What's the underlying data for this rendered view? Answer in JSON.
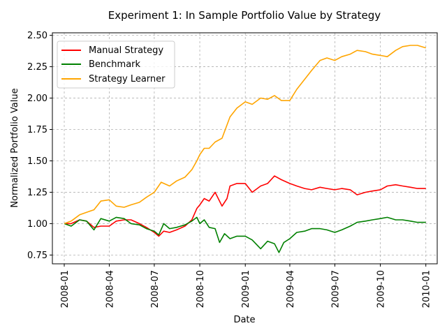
{
  "chart_data": {
    "type": "line",
    "title": "Experiment 1: In Sample Portfolio Value by Strategy",
    "xlabel": "Date",
    "ylabel": "Normalized Portfolio Value",
    "xlim": [
      "2007-12-08",
      "2010-01-24"
    ],
    "ylim": [
      0.68,
      2.52
    ],
    "grid": true,
    "legend_position": "top-left",
    "x_ticks": [
      "2008-01-01",
      "2008-04-01",
      "2008-07-01",
      "2008-10-01",
      "2009-01-01",
      "2009-04-01",
      "2009-07-01",
      "2009-10-01",
      "2010-01-01"
    ],
    "x_tick_labels": [
      "2008-01",
      "2008-04",
      "2008-07",
      "2008-10",
      "2009-01",
      "2009-04",
      "2009-07",
      "2009-10",
      "2010-01"
    ],
    "y_ticks": [
      0.75,
      1.0,
      1.25,
      1.5,
      1.75,
      2.0,
      2.25,
      2.5
    ],
    "y_tick_labels": [
      "0.75",
      "1.00",
      "1.25",
      "1.50",
      "1.75",
      "2.00",
      "2.25",
      "2.50"
    ],
    "series": [
      {
        "name": "Manual Strategy",
        "color": "#ff0000",
        "x": [
          "2008-01-01",
          "2008-01-15",
          "2008-02-01",
          "2008-02-15",
          "2008-03-01",
          "2008-03-15",
          "2008-04-01",
          "2008-04-15",
          "2008-05-01",
          "2008-05-15",
          "2008-06-01",
          "2008-06-15",
          "2008-07-01",
          "2008-07-10",
          "2008-07-20",
          "2008-08-01",
          "2008-08-15",
          "2008-09-01",
          "2008-09-15",
          "2008-09-25",
          "2008-10-01",
          "2008-10-10",
          "2008-10-20",
          "2008-11-01",
          "2008-11-15",
          "2008-11-25",
          "2008-12-01",
          "2008-12-15",
          "2009-01-01",
          "2009-01-15",
          "2009-02-01",
          "2009-02-15",
          "2009-03-01",
          "2009-03-15",
          "2009-04-01",
          "2009-04-15",
          "2009-05-01",
          "2009-05-15",
          "2009-06-01",
          "2009-06-15",
          "2009-07-01",
          "2009-07-15",
          "2009-08-01",
          "2009-08-15",
          "2009-09-01",
          "2009-09-15",
          "2009-10-01",
          "2009-10-15",
          "2009-11-01",
          "2009-11-15",
          "2009-12-01",
          "2009-12-15",
          "2010-01-01"
        ],
        "y": [
          1.0,
          1.0,
          1.03,
          1.02,
          0.97,
          0.98,
          0.98,
          1.02,
          1.03,
          1.03,
          1.0,
          0.97,
          0.93,
          0.9,
          0.94,
          0.93,
          0.95,
          0.98,
          1.03,
          1.12,
          1.15,
          1.2,
          1.18,
          1.25,
          1.14,
          1.2,
          1.3,
          1.32,
          1.32,
          1.25,
          1.3,
          1.32,
          1.38,
          1.35,
          1.32,
          1.3,
          1.28,
          1.27,
          1.29,
          1.28,
          1.27,
          1.28,
          1.27,
          1.23,
          1.25,
          1.26,
          1.27,
          1.3,
          1.31,
          1.3,
          1.29,
          1.28,
          1.28
        ]
      },
      {
        "name": "Benchmark",
        "color": "#008000",
        "x": [
          "2008-01-01",
          "2008-01-15",
          "2008-02-01",
          "2008-02-15",
          "2008-03-01",
          "2008-03-15",
          "2008-04-01",
          "2008-04-15",
          "2008-05-01",
          "2008-05-15",
          "2008-06-01",
          "2008-06-15",
          "2008-07-01",
          "2008-07-10",
          "2008-07-20",
          "2008-08-01",
          "2008-08-15",
          "2008-09-01",
          "2008-09-15",
          "2008-09-25",
          "2008-10-01",
          "2008-10-10",
          "2008-10-20",
          "2008-11-01",
          "2008-11-10",
          "2008-11-20",
          "2008-12-01",
          "2008-12-15",
          "2009-01-01",
          "2009-01-15",
          "2009-02-01",
          "2009-02-15",
          "2009-03-01",
          "2009-03-10",
          "2009-03-20",
          "2009-04-01",
          "2009-04-15",
          "2009-05-01",
          "2009-05-15",
          "2009-06-01",
          "2009-06-15",
          "2009-07-01",
          "2009-07-15",
          "2009-08-01",
          "2009-08-15",
          "2009-09-01",
          "2009-09-15",
          "2009-10-01",
          "2009-10-15",
          "2009-11-01",
          "2009-11-15",
          "2009-12-01",
          "2009-12-15",
          "2010-01-01"
        ],
        "y": [
          1.0,
          0.98,
          1.03,
          1.02,
          0.95,
          1.04,
          1.02,
          1.05,
          1.04,
          1.0,
          0.99,
          0.96,
          0.94,
          0.91,
          1.0,
          0.96,
          0.97,
          0.99,
          1.02,
          1.05,
          1.0,
          1.03,
          0.97,
          0.96,
          0.85,
          0.92,
          0.88,
          0.9,
          0.9,
          0.87,
          0.8,
          0.86,
          0.84,
          0.77,
          0.85,
          0.88,
          0.93,
          0.94,
          0.96,
          0.96,
          0.95,
          0.93,
          0.95,
          0.98,
          1.01,
          1.02,
          1.03,
          1.04,
          1.05,
          1.03,
          1.03,
          1.02,
          1.01,
          1.01
        ]
      },
      {
        "name": "Strategy Learner",
        "color": "#ffa500",
        "x": [
          "2008-01-01",
          "2008-01-15",
          "2008-02-01",
          "2008-02-15",
          "2008-03-01",
          "2008-03-15",
          "2008-04-01",
          "2008-04-15",
          "2008-05-01",
          "2008-05-15",
          "2008-06-01",
          "2008-06-15",
          "2008-07-01",
          "2008-07-15",
          "2008-08-01",
          "2008-08-15",
          "2008-09-01",
          "2008-09-15",
          "2008-09-25",
          "2008-10-01",
          "2008-10-10",
          "2008-10-20",
          "2008-11-01",
          "2008-11-15",
          "2008-12-01",
          "2008-12-15",
          "2009-01-01",
          "2009-01-15",
          "2009-02-01",
          "2009-02-15",
          "2009-03-01",
          "2009-03-15",
          "2009-04-01",
          "2009-04-15",
          "2009-05-01",
          "2009-05-15",
          "2009-06-01",
          "2009-06-15",
          "2009-07-01",
          "2009-07-15",
          "2009-08-01",
          "2009-08-15",
          "2009-09-01",
          "2009-09-15",
          "2009-10-01",
          "2009-10-15",
          "2009-11-01",
          "2009-11-15",
          "2009-12-01",
          "2009-12-15",
          "2010-01-01"
        ],
        "y": [
          1.0,
          1.02,
          1.07,
          1.09,
          1.11,
          1.18,
          1.19,
          1.14,
          1.13,
          1.15,
          1.17,
          1.21,
          1.25,
          1.33,
          1.3,
          1.34,
          1.37,
          1.43,
          1.5,
          1.55,
          1.6,
          1.6,
          1.65,
          1.68,
          1.85,
          1.92,
          1.97,
          1.95,
          2.0,
          1.99,
          2.02,
          1.98,
          1.98,
          2.07,
          2.15,
          2.22,
          2.3,
          2.32,
          2.3,
          2.33,
          2.35,
          2.38,
          2.37,
          2.35,
          2.34,
          2.33,
          2.38,
          2.41,
          2.42,
          2.42,
          2.4
        ]
      }
    ]
  }
}
